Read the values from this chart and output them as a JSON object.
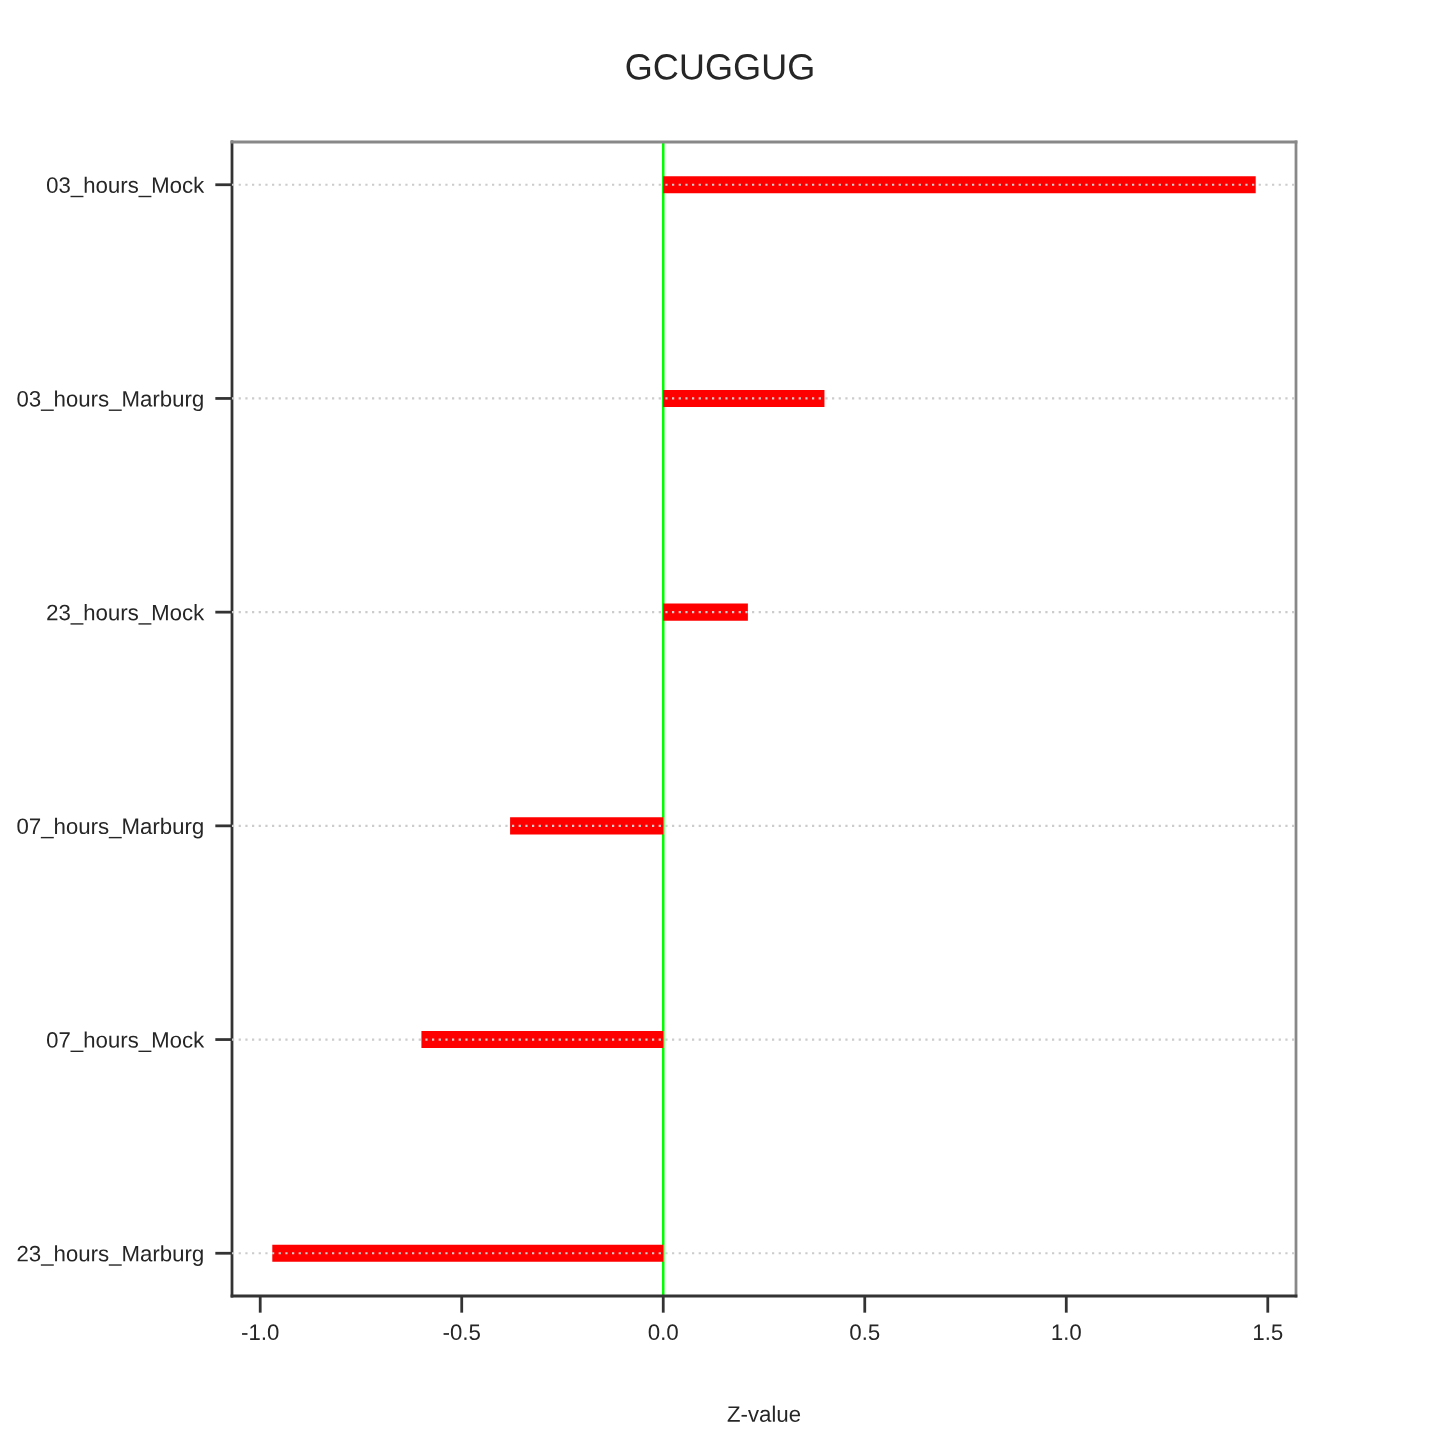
{
  "chart_data": {
    "type": "bar",
    "orientation": "horizontal",
    "title": "GCUGGUG",
    "xlabel": "Z-value",
    "categories": [
      "03_hours_Mock",
      "03_hours_Marburg",
      "23_hours_Mock",
      "07_hours_Marburg",
      "07_hours_Mock",
      "23_hours_Marburg"
    ],
    "values": [
      1.47,
      0.4,
      0.21,
      -0.38,
      -0.6,
      -0.97
    ],
    "color": "#ff0000",
    "xlim": [
      -1.07,
      1.57
    ],
    "xticks": [
      {
        "value": -1,
        "label": "-1.0"
      },
      {
        "value": -0.5,
        "label": "-0.5"
      },
      {
        "value": 0,
        "label": "0.0"
      },
      {
        "value": 0.5,
        "label": "0.5"
      },
      {
        "value": 1,
        "label": "1.0"
      },
      {
        "value": 1.5,
        "label": "1.5"
      }
    ],
    "grid": "y",
    "ref_lines": [
      {
        "axis": "x",
        "value": 0,
        "color": "#00ff00"
      }
    ]
  }
}
